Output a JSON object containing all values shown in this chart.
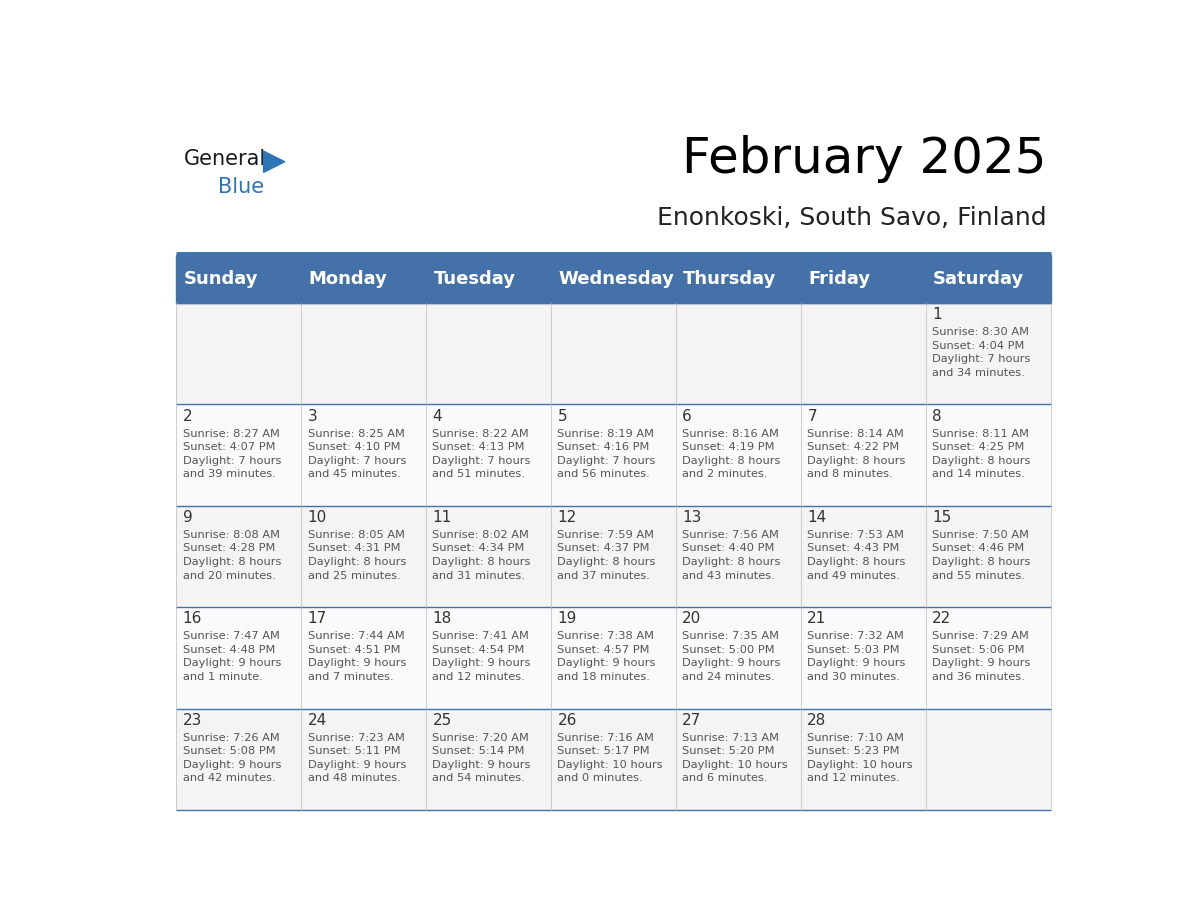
{
  "title": "February 2025",
  "subtitle": "Enonkoski, South Savo, Finland",
  "header_color": "#4472a8",
  "header_text_color": "#ffffff",
  "line_color": "#4472a8",
  "day_names": [
    "Sunday",
    "Monday",
    "Tuesday",
    "Wednesday",
    "Thursday",
    "Friday",
    "Saturday"
  ],
  "title_fontsize": 36,
  "subtitle_fontsize": 18,
  "header_fontsize": 13,
  "days": [
    {
      "day": 1,
      "col": 6,
      "row": 0,
      "sunrise": "8:30 AM",
      "sunset": "4:04 PM",
      "daylight_a": "7 hours",
      "daylight_b": "and 34 minutes."
    },
    {
      "day": 2,
      "col": 0,
      "row": 1,
      "sunrise": "8:27 AM",
      "sunset": "4:07 PM",
      "daylight_a": "7 hours",
      "daylight_b": "and 39 minutes."
    },
    {
      "day": 3,
      "col": 1,
      "row": 1,
      "sunrise": "8:25 AM",
      "sunset": "4:10 PM",
      "daylight_a": "7 hours",
      "daylight_b": "and 45 minutes."
    },
    {
      "day": 4,
      "col": 2,
      "row": 1,
      "sunrise": "8:22 AM",
      "sunset": "4:13 PM",
      "daylight_a": "7 hours",
      "daylight_b": "and 51 minutes."
    },
    {
      "day": 5,
      "col": 3,
      "row": 1,
      "sunrise": "8:19 AM",
      "sunset": "4:16 PM",
      "daylight_a": "7 hours",
      "daylight_b": "and 56 minutes."
    },
    {
      "day": 6,
      "col": 4,
      "row": 1,
      "sunrise": "8:16 AM",
      "sunset": "4:19 PM",
      "daylight_a": "8 hours",
      "daylight_b": "and 2 minutes."
    },
    {
      "day": 7,
      "col": 5,
      "row": 1,
      "sunrise": "8:14 AM",
      "sunset": "4:22 PM",
      "daylight_a": "8 hours",
      "daylight_b": "and 8 minutes."
    },
    {
      "day": 8,
      "col": 6,
      "row": 1,
      "sunrise": "8:11 AM",
      "sunset": "4:25 PM",
      "daylight_a": "8 hours",
      "daylight_b": "and 14 minutes."
    },
    {
      "day": 9,
      "col": 0,
      "row": 2,
      "sunrise": "8:08 AM",
      "sunset": "4:28 PM",
      "daylight_a": "8 hours",
      "daylight_b": "and 20 minutes."
    },
    {
      "day": 10,
      "col": 1,
      "row": 2,
      "sunrise": "8:05 AM",
      "sunset": "4:31 PM",
      "daylight_a": "8 hours",
      "daylight_b": "and 25 minutes."
    },
    {
      "day": 11,
      "col": 2,
      "row": 2,
      "sunrise": "8:02 AM",
      "sunset": "4:34 PM",
      "daylight_a": "8 hours",
      "daylight_b": "and 31 minutes."
    },
    {
      "day": 12,
      "col": 3,
      "row": 2,
      "sunrise": "7:59 AM",
      "sunset": "4:37 PM",
      "daylight_a": "8 hours",
      "daylight_b": "and 37 minutes."
    },
    {
      "day": 13,
      "col": 4,
      "row": 2,
      "sunrise": "7:56 AM",
      "sunset": "4:40 PM",
      "daylight_a": "8 hours",
      "daylight_b": "and 43 minutes."
    },
    {
      "day": 14,
      "col": 5,
      "row": 2,
      "sunrise": "7:53 AM",
      "sunset": "4:43 PM",
      "daylight_a": "8 hours",
      "daylight_b": "and 49 minutes."
    },
    {
      "day": 15,
      "col": 6,
      "row": 2,
      "sunrise": "7:50 AM",
      "sunset": "4:46 PM",
      "daylight_a": "8 hours",
      "daylight_b": "and 55 minutes."
    },
    {
      "day": 16,
      "col": 0,
      "row": 3,
      "sunrise": "7:47 AM",
      "sunset": "4:48 PM",
      "daylight_a": "9 hours",
      "daylight_b": "and 1 minute."
    },
    {
      "day": 17,
      "col": 1,
      "row": 3,
      "sunrise": "7:44 AM",
      "sunset": "4:51 PM",
      "daylight_a": "9 hours",
      "daylight_b": "and 7 minutes."
    },
    {
      "day": 18,
      "col": 2,
      "row": 3,
      "sunrise": "7:41 AM",
      "sunset": "4:54 PM",
      "daylight_a": "9 hours",
      "daylight_b": "and 12 minutes."
    },
    {
      "day": 19,
      "col": 3,
      "row": 3,
      "sunrise": "7:38 AM",
      "sunset": "4:57 PM",
      "daylight_a": "9 hours",
      "daylight_b": "and 18 minutes."
    },
    {
      "day": 20,
      "col": 4,
      "row": 3,
      "sunrise": "7:35 AM",
      "sunset": "5:00 PM",
      "daylight_a": "9 hours",
      "daylight_b": "and 24 minutes."
    },
    {
      "day": 21,
      "col": 5,
      "row": 3,
      "sunrise": "7:32 AM",
      "sunset": "5:03 PM",
      "daylight_a": "9 hours",
      "daylight_b": "and 30 minutes."
    },
    {
      "day": 22,
      "col": 6,
      "row": 3,
      "sunrise": "7:29 AM",
      "sunset": "5:06 PM",
      "daylight_a": "9 hours",
      "daylight_b": "and 36 minutes."
    },
    {
      "day": 23,
      "col": 0,
      "row": 4,
      "sunrise": "7:26 AM",
      "sunset": "5:08 PM",
      "daylight_a": "9 hours",
      "daylight_b": "and 42 minutes."
    },
    {
      "day": 24,
      "col": 1,
      "row": 4,
      "sunrise": "7:23 AM",
      "sunset": "5:11 PM",
      "daylight_a": "9 hours",
      "daylight_b": "and 48 minutes."
    },
    {
      "day": 25,
      "col": 2,
      "row": 4,
      "sunrise": "7:20 AM",
      "sunset": "5:14 PM",
      "daylight_a": "9 hours",
      "daylight_b": "and 54 minutes."
    },
    {
      "day": 26,
      "col": 3,
      "row": 4,
      "sunrise": "7:16 AM",
      "sunset": "5:17 PM",
      "daylight_a": "10 hours",
      "daylight_b": "and 0 minutes."
    },
    {
      "day": 27,
      "col": 4,
      "row": 4,
      "sunrise": "7:13 AM",
      "sunset": "5:20 PM",
      "daylight_a": "10 hours",
      "daylight_b": "and 6 minutes."
    },
    {
      "day": 28,
      "col": 5,
      "row": 4,
      "sunrise": "7:10 AM",
      "sunset": "5:23 PM",
      "daylight_a": "10 hours",
      "daylight_b": "and 12 minutes."
    }
  ]
}
